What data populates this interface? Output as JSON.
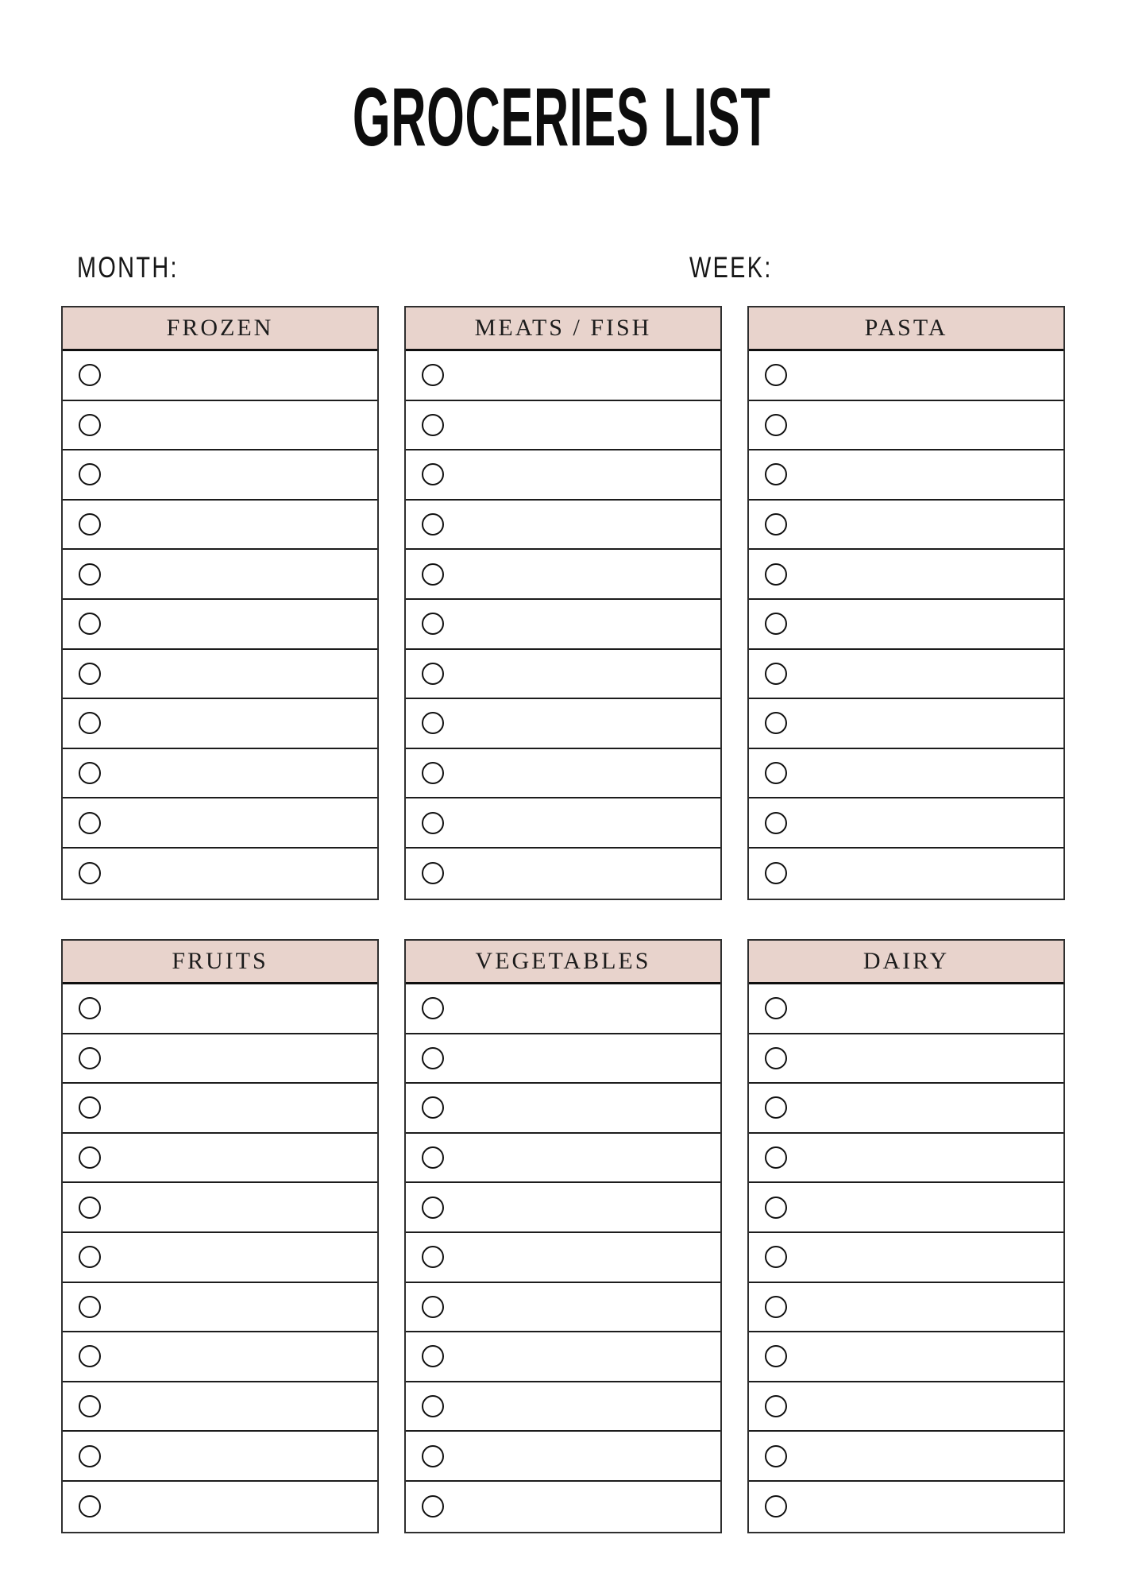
{
  "page": {
    "title": "GROCERIES LIST"
  },
  "meta": {
    "month_label": "MONTH:",
    "week_label": "WEEK:"
  },
  "sections": [
    {
      "tables": [
        {
          "header": "FROZEN",
          "rows": 11
        },
        {
          "header": "MEATS / FISH",
          "rows": 11
        },
        {
          "header": "PASTA",
          "rows": 11
        }
      ]
    },
    {
      "tables": [
        {
          "header": "FRUITS",
          "rows": 11
        },
        {
          "header": "VEGETABLES",
          "rows": 11
        },
        {
          "header": "DAIRY",
          "rows": 11
        }
      ]
    }
  ],
  "colors": {
    "page_background": "#ffffff",
    "header_background": "#e8d3cc",
    "table_border": "#2f2f2f",
    "row_line": "#1c1c1c",
    "text": "#1c1c1c",
    "title": "#0d0d0d"
  },
  "icons": {
    "row_marker": "circle-checkbox-icon"
  }
}
